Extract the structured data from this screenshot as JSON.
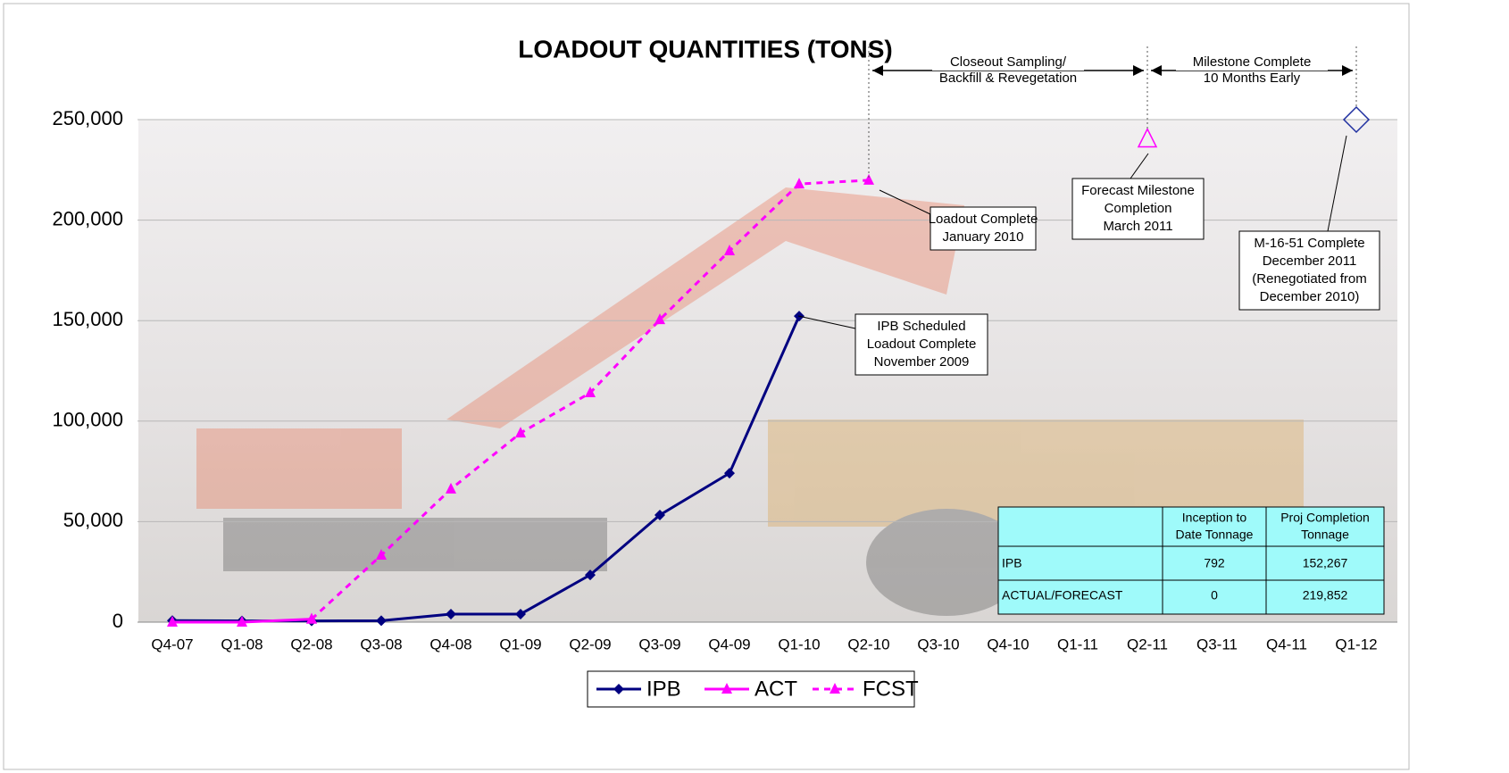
{
  "chart_data": {
    "type": "line",
    "title": "LOADOUT QUANTITIES (TONS)",
    "categories": [
      "Q4-07",
      "Q1-08",
      "Q2-08",
      "Q3-08",
      "Q4-08",
      "Q1-09",
      "Q2-09",
      "Q3-09",
      "Q4-09",
      "Q1-10",
      "Q2-10",
      "Q3-10",
      "Q4-10",
      "Q1-11",
      "Q2-11",
      "Q3-11",
      "Q4-11",
      "Q1-12"
    ],
    "series": [
      {
        "name": "IPB",
        "color": "#000080",
        "marker": "diamond",
        "dash": false,
        "values": [
          792,
          600,
          600,
          700,
          4000,
          4000,
          23500,
          53300,
          74100,
          152267,
          null,
          null,
          null,
          null,
          null,
          null,
          null,
          null
        ]
      },
      {
        "name": "ACT",
        "color": "#ff00ff",
        "marker": "triangle",
        "dash": false,
        "values": [
          0,
          0,
          1500,
          null,
          null,
          null,
          null,
          null,
          null,
          null,
          null,
          null,
          null,
          null,
          null,
          null,
          null,
          null
        ]
      },
      {
        "name": "FCST",
        "color": "#ff00ff",
        "marker": "triangle",
        "dash": true,
        "values": [
          null,
          null,
          1500,
          33300,
          66200,
          94100,
          114100,
          150500,
          184700,
          218000,
          219852,
          null,
          null,
          null,
          null,
          null,
          null,
          null
        ]
      },
      {
        "color": "#ff00ff",
        "marker": "open-triangle",
        "values": [
          null,
          null,
          null,
          null,
          null,
          null,
          null,
          null,
          null,
          null,
          null,
          null,
          null,
          null,
          240000,
          null,
          null,
          null
        ]
      },
      {
        "color": "#1f2fa0",
        "marker": "open-diamond",
        "values": [
          null,
          null,
          null,
          null,
          null,
          null,
          null,
          null,
          null,
          null,
          null,
          null,
          null,
          null,
          null,
          null,
          null,
          250000
        ]
      }
    ],
    "ylim": [
      0,
      250000
    ],
    "yticks": [
      0,
      {
        "value": 50000,
        "label": "50,000"
      },
      {
        "value": 100000,
        "label": "100,000"
      },
      {
        "value": 150000,
        "label": "150,000"
      },
      {
        "value": 200000,
        "label": "200,000"
      },
      {
        "value": 250000,
        "label": "250,000"
      }
    ],
    "grid": true,
    "legend": "bottom",
    "annotations": [
      {
        "lines": [
          "Loadout Complete",
          "January 2010"
        ]
      },
      {
        "lines": [
          "Forecast Milestone",
          "Completion",
          "March 2011"
        ]
      },
      {
        "lines": [
          "M-16-51 Complete",
          "December 2011",
          "(Renegotiated from",
          "December 2010)"
        ]
      },
      {
        "lines": [
          "IPB Scheduled",
          "Loadout Complete",
          "November 2009"
        ]
      }
    ],
    "spans": [
      {
        "lines": [
          "Closeout Sampling/",
          "Backfill & Revegetation"
        ]
      },
      {
        "lines": [
          "Milestone Complete",
          "10 Months Early"
        ]
      }
    ],
    "table": {
      "columns": [
        [
          "Inception to",
          "Date Tonnage"
        ],
        [
          "Proj Completion",
          "Tonnage"
        ]
      ],
      "rows": [
        [
          "IPB",
          "792",
          "152,267"
        ],
        [
          "ACTUAL/FORECAST",
          "0",
          "219,852"
        ]
      ]
    }
  }
}
